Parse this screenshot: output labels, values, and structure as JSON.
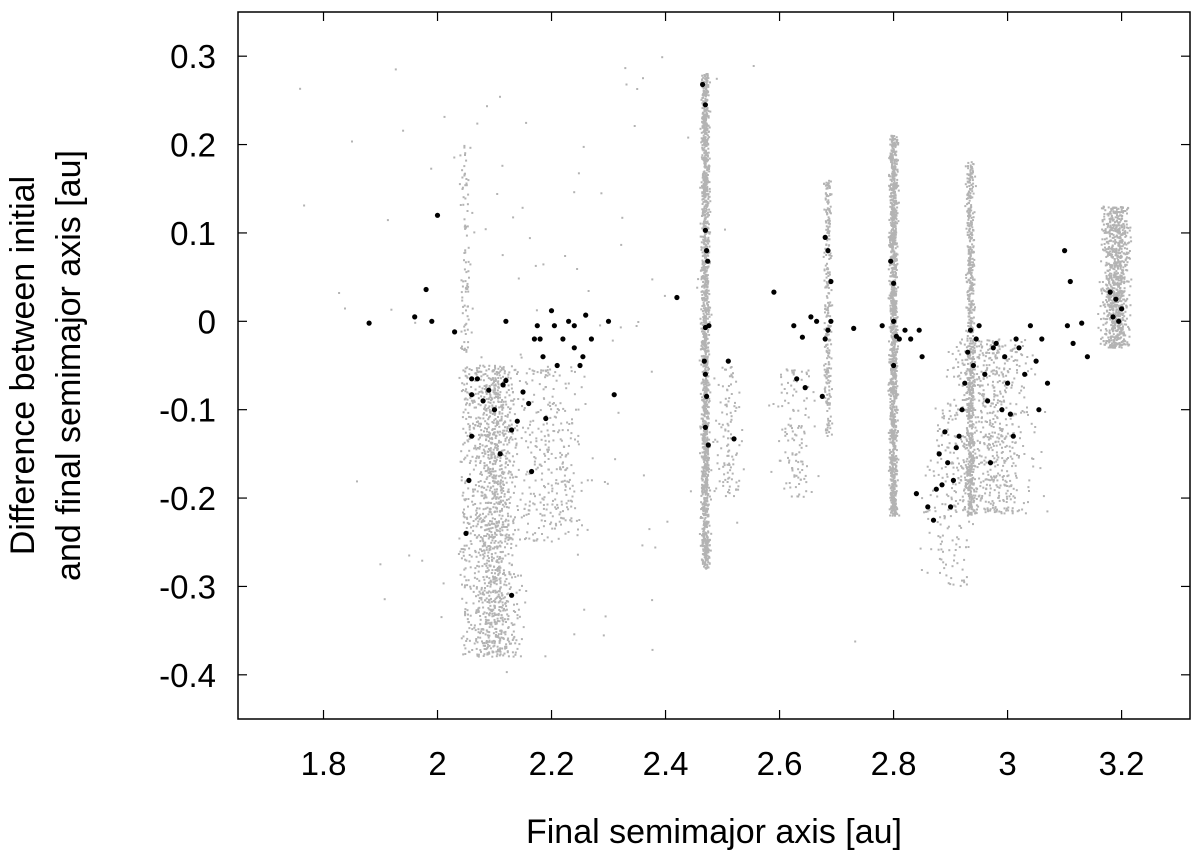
{
  "chart_data": {
    "type": "scatter",
    "title": "",
    "xlabel": "Final semimajor axis [au]",
    "ylabel_lines": [
      "Difference between initial",
      "and final semimajor axis [au]"
    ],
    "xlim": [
      1.65,
      3.32
    ],
    "ylim": [
      -0.45,
      0.35
    ],
    "xticks": [
      1.8,
      2.0,
      2.2,
      2.4,
      2.6,
      2.8,
      3.0,
      3.2
    ],
    "xtick_labels": [
      "1.8",
      "2",
      "2.2",
      "2.4",
      "2.6",
      "2.8",
      "3",
      "3.2"
    ],
    "yticks": [
      0.3,
      0.2,
      0.1,
      0.0,
      -0.1,
      -0.2,
      -0.3,
      -0.4
    ],
    "ytick_labels": [
      "0.3",
      "0.2",
      "0.1",
      "0",
      "-0.1",
      "-0.2",
      "-0.3",
      "-0.4"
    ],
    "grid": false,
    "legend": "none",
    "series": [
      {
        "color": "#b3b3b3",
        "marker": "small-dot",
        "clusters": [
          {
            "x": 2.47,
            "x_spread": 0.006,
            "y_min": -0.28,
            "y_max": 0.28,
            "count": 1600
          },
          {
            "x": 2.8,
            "x_spread": 0.006,
            "y_min": -0.22,
            "y_max": 0.21,
            "count": 1400
          },
          {
            "x": 2.935,
            "x_spread": 0.006,
            "y_min": -0.22,
            "y_max": 0.18,
            "count": 700
          },
          {
            "x": 2.685,
            "x_spread": 0.006,
            "y_min": -0.13,
            "y_max": 0.16,
            "count": 260
          },
          {
            "x": 3.19,
            "x_spread": 0.02,
            "y_min": -0.03,
            "y_max": 0.13,
            "count": 900
          },
          {
            "x": 2.1,
            "x_spread": 0.035,
            "y_min": -0.38,
            "y_max": -0.05,
            "count": 1300
          },
          {
            "x": 2.2,
            "x_spread": 0.05,
            "y_min": -0.25,
            "y_max": -0.05,
            "count": 300
          },
          {
            "x": 2.05,
            "x_spread": 0.008,
            "y_min": -0.38,
            "y_max": 0.2,
            "count": 220
          },
          {
            "x": 2.97,
            "x_spread": 0.06,
            "y_min": -0.22,
            "y_max": -0.02,
            "count": 700
          },
          {
            "x": 2.63,
            "x_spread": 0.03,
            "y_min": -0.2,
            "y_max": -0.05,
            "count": 120
          },
          {
            "x": 2.51,
            "x_spread": 0.02,
            "y_min": -0.2,
            "y_max": -0.05,
            "count": 100
          },
          {
            "x": 2.9,
            "x_spread": 0.04,
            "y_min": -0.3,
            "y_max": -0.1,
            "count": 150
          },
          {
            "x": 2.2,
            "x_spread": 0.35,
            "y_min": -0.4,
            "y_max": 0.3,
            "count": 120
          }
        ]
      },
      {
        "color": "#000000",
        "marker": "dot",
        "points": [
          [
            1.88,
            -0.002
          ],
          [
            1.96,
            0.005
          ],
          [
            1.98,
            0.036
          ],
          [
            1.99,
            0.0
          ],
          [
            2.0,
            0.12
          ],
          [
            2.03,
            -0.012
          ],
          [
            2.05,
            -0.24
          ],
          [
            2.055,
            -0.18
          ],
          [
            2.06,
            -0.13
          ],
          [
            2.06,
            -0.083
          ],
          [
            2.06,
            -0.065
          ],
          [
            2.07,
            -0.065
          ],
          [
            2.08,
            -0.09
          ],
          [
            2.09,
            -0.078
          ],
          [
            2.1,
            -0.1
          ],
          [
            2.11,
            -0.15
          ],
          [
            2.115,
            -0.072
          ],
          [
            2.12,
            -0.067
          ],
          [
            2.12,
            0.0
          ],
          [
            2.13,
            -0.123
          ],
          [
            2.13,
            -0.31
          ],
          [
            2.14,
            -0.113
          ],
          [
            2.15,
            -0.08
          ],
          [
            2.16,
            -0.093
          ],
          [
            2.165,
            -0.17
          ],
          [
            2.17,
            -0.02
          ],
          [
            2.175,
            -0.005
          ],
          [
            2.18,
            -0.02
          ],
          [
            2.185,
            -0.04
          ],
          [
            2.19,
            -0.11
          ],
          [
            2.2,
            0.012
          ],
          [
            2.205,
            -0.005
          ],
          [
            2.21,
            -0.05
          ],
          [
            2.22,
            -0.02
          ],
          [
            2.23,
            0.0
          ],
          [
            2.24,
            -0.005
          ],
          [
            2.24,
            -0.03
          ],
          [
            2.25,
            -0.05
          ],
          [
            2.255,
            -0.04
          ],
          [
            2.26,
            0.007
          ],
          [
            2.27,
            -0.02
          ],
          [
            2.3,
            0.0
          ],
          [
            2.31,
            -0.083
          ],
          [
            2.42,
            0.027
          ],
          [
            2.465,
            0.268
          ],
          [
            2.47,
            0.245
          ],
          [
            2.47,
            0.103
          ],
          [
            2.472,
            0.08
          ],
          [
            2.474,
            0.068
          ],
          [
            2.47,
            -0.007
          ],
          [
            2.468,
            -0.045
          ],
          [
            2.47,
            -0.06
          ],
          [
            2.472,
            -0.085
          ],
          [
            2.47,
            -0.12
          ],
          [
            2.475,
            -0.14
          ],
          [
            2.476,
            -0.005
          ],
          [
            2.51,
            -0.045
          ],
          [
            2.52,
            -0.133
          ],
          [
            2.59,
            0.033
          ],
          [
            2.625,
            -0.005
          ],
          [
            2.63,
            -0.065
          ],
          [
            2.64,
            -0.018
          ],
          [
            2.645,
            -0.075
          ],
          [
            2.655,
            0.005
          ],
          [
            2.665,
            0.0
          ],
          [
            2.675,
            -0.085
          ],
          [
            2.68,
            0.095
          ],
          [
            2.68,
            -0.02
          ],
          [
            2.685,
            -0.01
          ],
          [
            2.685,
            0.08
          ],
          [
            2.69,
            0.045
          ],
          [
            2.69,
            0.0
          ],
          [
            2.73,
            -0.008
          ],
          [
            2.78,
            -0.005
          ],
          [
            2.795,
            0.068
          ],
          [
            2.8,
            0.043
          ],
          [
            2.8,
            0.0
          ],
          [
            2.805,
            -0.017
          ],
          [
            2.8,
            -0.05
          ],
          [
            2.81,
            -0.02
          ],
          [
            2.82,
            -0.01
          ],
          [
            2.83,
            -0.02
          ],
          [
            2.84,
            -0.195
          ],
          [
            2.845,
            -0.01
          ],
          [
            2.85,
            -0.04
          ],
          [
            2.86,
            -0.21
          ],
          [
            2.87,
            -0.225
          ],
          [
            2.875,
            -0.19
          ],
          [
            2.88,
            -0.15
          ],
          [
            2.885,
            -0.185
          ],
          [
            2.89,
            -0.125
          ],
          [
            2.895,
            -0.16
          ],
          [
            2.9,
            -0.21
          ],
          [
            2.905,
            -0.18
          ],
          [
            2.91,
            -0.143
          ],
          [
            2.915,
            -0.13
          ],
          [
            2.92,
            -0.1
          ],
          [
            2.925,
            -0.07
          ],
          [
            2.93,
            -0.035
          ],
          [
            2.935,
            -0.01
          ],
          [
            2.94,
            -0.05
          ],
          [
            2.945,
            -0.02
          ],
          [
            2.95,
            -0.005
          ],
          [
            2.96,
            -0.06
          ],
          [
            2.965,
            -0.09
          ],
          [
            2.97,
            -0.16
          ],
          [
            2.975,
            -0.03
          ],
          [
            2.98,
            -0.025
          ],
          [
            2.99,
            -0.1
          ],
          [
            2.995,
            -0.04
          ],
          [
            3.0,
            -0.07
          ],
          [
            3.005,
            -0.105
          ],
          [
            3.01,
            -0.13
          ],
          [
            3.015,
            -0.02
          ],
          [
            3.02,
            -0.03
          ],
          [
            3.03,
            -0.06
          ],
          [
            3.04,
            -0.005
          ],
          [
            3.05,
            -0.045
          ],
          [
            3.055,
            -0.1
          ],
          [
            3.06,
            -0.02
          ],
          [
            3.07,
            -0.07
          ],
          [
            3.1,
            0.08
          ],
          [
            3.105,
            -0.005
          ],
          [
            3.11,
            0.045
          ],
          [
            3.115,
            -0.025
          ],
          [
            3.13,
            -0.002
          ],
          [
            3.14,
            -0.04
          ],
          [
            3.18,
            0.033
          ],
          [
            3.185,
            0.005
          ],
          [
            3.19,
            0.025
          ],
          [
            3.195,
            0.0
          ],
          [
            3.2,
            0.014
          ]
        ]
      }
    ]
  }
}
